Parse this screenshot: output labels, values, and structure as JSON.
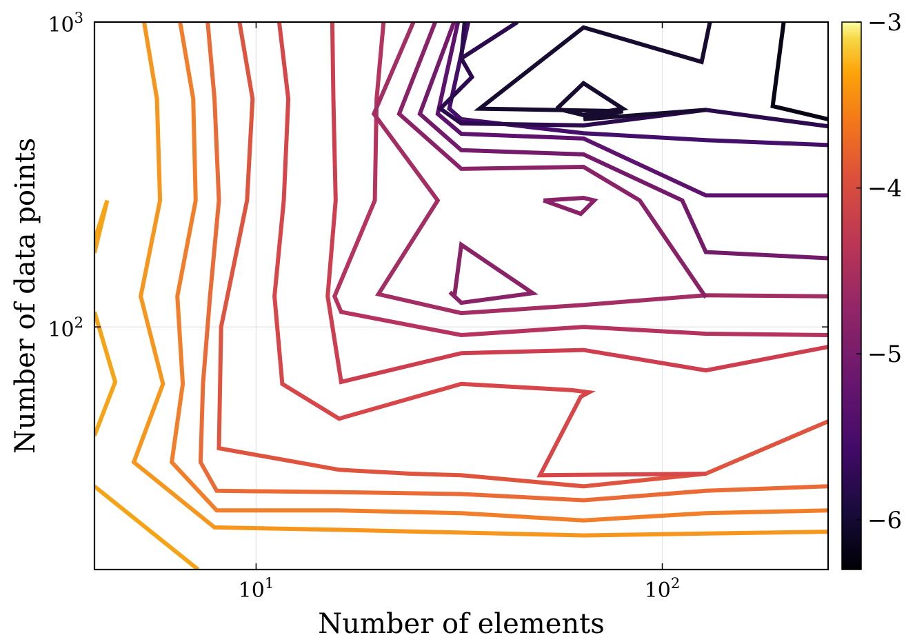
{
  "chart_data": {
    "type": "contour",
    "xlabel": "Number of elements",
    "ylabel": "Number of data points",
    "xscale": "log",
    "yscale": "log",
    "xlim": [
      4,
      256
    ],
    "ylim": [
      16,
      1000
    ],
    "xticks": [
      {
        "value": 10,
        "base": "10",
        "exp": "1"
      },
      {
        "value": 100,
        "base": "10",
        "exp": "2"
      }
    ],
    "yticks": [
      {
        "value": 100,
        "base": "10",
        "exp": "2"
      },
      {
        "value": 1000,
        "base": "10",
        "exp": "3"
      }
    ],
    "grid": true,
    "colorbar": {
      "colormap": "inferno",
      "range": [
        -6.3,
        -3.0
      ],
      "ticks": [
        -3,
        -4,
        -5,
        -6
      ],
      "tick_labels": [
        "−3",
        "−4",
        "−5",
        "−6"
      ]
    },
    "contours": [
      {
        "level": -3.4,
        "color": "#f6a316",
        "paths": [
          [
            [
              4,
              192
            ],
            [
              4.3,
              260
            ],
            [
              4,
              175
            ]
          ],
          [
            [
              4,
              112
            ],
            [
              4.5,
              66
            ],
            [
              4,
              44
            ]
          ],
          [
            [
              4,
              30
            ],
            [
              7.2,
              16
            ]
          ]
        ]
      },
      {
        "level": -3.6,
        "color": "#f6961c",
        "paths": [
          [
            [
              5.3,
              1000
            ],
            [
              5.7,
              560
            ],
            [
              5.8,
              260
            ],
            [
              5.2,
              126
            ],
            [
              5.9,
              65
            ],
            [
              5,
              36
            ],
            [
              7.9,
              22
            ],
            [
              16,
              21.6
            ],
            [
              64,
              20.7
            ],
            [
              128,
              21
            ],
            [
              256,
              21.3
            ]
          ]
        ]
      },
      {
        "level": -3.8,
        "color": "#f27e2a",
        "paths": [
          [
            [
              6.5,
              1000
            ],
            [
              7,
              560
            ],
            [
              7.1,
              260
            ],
            [
              6.4,
              126
            ],
            [
              6.6,
              65
            ],
            [
              6.2,
              36
            ],
            [
              8,
              25
            ],
            [
              16,
              25
            ],
            [
              32,
              24.5
            ],
            [
              64,
              23.2
            ],
            [
              128,
              24.5
            ],
            [
              256,
              25
            ]
          ]
        ]
      },
      {
        "level": -4.0,
        "color": "#ea6b36",
        "paths": [
          [
            [
              7.6,
              1000
            ],
            [
              7.9,
              560
            ],
            [
              8.1,
              260
            ],
            [
              7.7,
              126
            ],
            [
              7.4,
              65
            ],
            [
              7.3,
              36
            ],
            [
              8,
              29
            ],
            [
              16,
              28.7
            ],
            [
              32,
              28.3
            ],
            [
              64,
              27
            ],
            [
              128,
              29
            ],
            [
              256,
              30
            ]
          ]
        ]
      },
      {
        "level": -4.2,
        "color": "#de543f",
        "paths": [
          [
            [
              9.1,
              1000
            ],
            [
              9.8,
              560
            ],
            [
              9.5,
              260
            ],
            [
              8.2,
              100
            ],
            [
              8.1,
              40
            ],
            [
              16,
              34
            ],
            [
              24,
              33
            ],
            [
              32,
              32.6
            ],
            [
              64,
              30
            ],
            [
              128,
              33
            ],
            [
              256,
              49
            ]
          ]
        ]
      },
      {
        "level": -4.4,
        "color": "#d74648",
        "paths": [
          [
            [
              11.4,
              1000
            ],
            [
              12,
              560
            ],
            [
              11.7,
              260
            ],
            [
              11.1,
              126
            ],
            [
              11.6,
              65
            ],
            [
              16,
              50
            ],
            [
              32,
              65
            ],
            [
              60,
              62
            ],
            [
              66,
              61
            ],
            [
              63,
              59
            ],
            [
              50,
              32.6
            ],
            [
              128,
              33
            ]
          ]
        ]
      },
      {
        "level": -4.6,
        "color": "#cd3e4e",
        "paths": [
          [
            [
              15.4,
              1000
            ],
            [
              15.5,
              560
            ],
            [
              15.7,
              260
            ],
            [
              15,
              126
            ],
            [
              16.2,
              66
            ],
            [
              32,
              82
            ],
            [
              64,
              84
            ],
            [
              128,
              72
            ],
            [
              256,
              86
            ]
          ]
        ]
      },
      {
        "level": -4.8,
        "color": "#b5335c",
        "paths": [
          [
            [
              20.6,
              1000
            ],
            [
              19.8,
              560
            ],
            [
              19.6,
              260
            ],
            [
              15.6,
              126
            ],
            [
              16.2,
              112
            ],
            [
              32,
              94
            ],
            [
              64,
              100
            ],
            [
              128,
              95
            ],
            [
              256,
              94
            ]
          ]
        ]
      },
      {
        "level": -5.0,
        "color": "#a22e63",
        "paths": [
          [
            [
              24.4,
              1000
            ],
            [
              19.5,
              500
            ],
            [
              28,
              260
            ],
            [
              20,
              128
            ],
            [
              32,
              111
            ],
            [
              64,
              118
            ],
            [
              128,
              127
            ],
            [
              256,
              126
            ]
          ]
        ]
      },
      {
        "level": -5.1,
        "color": "#8a2267",
        "paths": [
          [
            [
              27.6,
              1000
            ],
            [
              22.5,
              500
            ],
            [
              32,
              330
            ],
            [
              64,
              335
            ],
            [
              88,
              260
            ],
            [
              128,
              125
            ]
          ],
          [
            [
              30.8,
              127
            ],
            [
              32,
              186
            ],
            [
              48,
              129
            ],
            [
              32,
              120
            ],
            [
              30,
              130
            ]
          ],
          [
            [
              51,
              260
            ],
            [
              64,
              265
            ],
            [
              68,
              260
            ],
            [
              63,
              235
            ],
            [
              51,
              260
            ]
          ]
        ]
      },
      {
        "level": -5.3,
        "color": "#741a6a",
        "paths": [
          [
            [
              30.7,
              1000
            ],
            [
              25.3,
              500
            ],
            [
              32,
              380
            ],
            [
              64,
              368
            ],
            [
              112,
              260
            ],
            [
              128,
              176
            ],
            [
              256,
              168
            ]
          ]
        ]
      },
      {
        "level": -5.5,
        "color": "#5d126e",
        "paths": [
          [
            [
              31.4,
              1000
            ],
            [
              28,
              500
            ],
            [
              32,
              430
            ],
            [
              64,
              415
            ],
            [
              128,
              270
            ],
            [
              256,
              270
            ]
          ]
        ]
      },
      {
        "level": -5.7,
        "color": "#440f6a",
        "paths": [
          [
            [
              33.3,
              1000
            ],
            [
              29.9,
              520
            ],
            [
              32,
              480
            ],
            [
              64,
              432
            ],
            [
              128,
              410
            ],
            [
              256,
              395
            ]
          ]
        ]
      },
      {
        "level": -5.9,
        "color": "#2b0a4e",
        "paths": [
          [
            [
              32.6,
              1000
            ],
            [
              32,
              760
            ],
            [
              34,
              660
            ],
            [
              28.4,
              520
            ],
            [
              32,
              465
            ],
            [
              64,
              458
            ],
            [
              128,
              515
            ],
            [
              256,
              455
            ]
          ],
          [
            [
              44,
              1000
            ],
            [
              32,
              760
            ]
          ]
        ]
      },
      {
        "level": -6.1,
        "color": "#170c30",
        "paths": [
          [
            [
              131,
              1000
            ],
            [
              125,
              740
            ],
            [
              64,
              960
            ],
            [
              35.5,
              520
            ],
            [
              80,
              510
            ],
            [
              64,
              480
            ],
            [
              128,
              515
            ]
          ],
          [
            [
              55,
              520
            ],
            [
              64,
              630
            ],
            [
              80,
              520
            ],
            [
              64,
              495
            ],
            [
              55,
              520
            ]
          ]
        ]
      },
      {
        "level": -6.25,
        "color": "#0a0514",
        "paths": [
          [
            [
              199,
              1000
            ],
            [
              187,
              530
            ],
            [
              256,
              480
            ]
          ]
        ]
      }
    ]
  }
}
